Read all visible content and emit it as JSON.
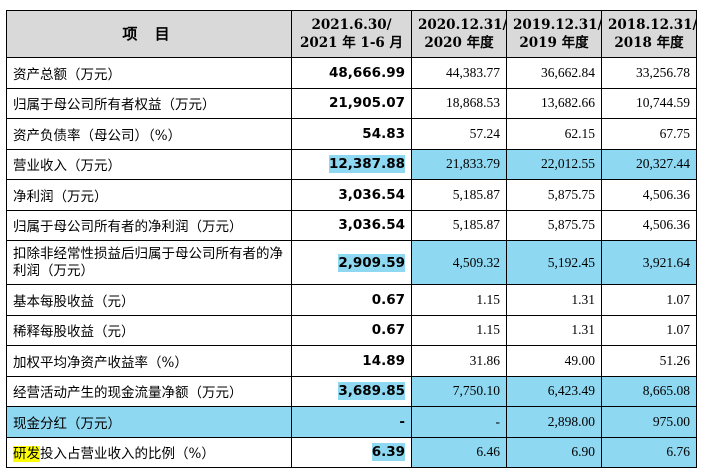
{
  "table": {
    "headers": [
      {
        "line1": "项  目",
        "line2": ""
      },
      {
        "line1": "2021.6.30/",
        "line2": "2021 年 1-6 月"
      },
      {
        "line1": "2020.12.31/",
        "line2": "2020 年度"
      },
      {
        "line1": "2019.12.31/",
        "line2": "2019 年度"
      },
      {
        "line1": "2018.12.31/",
        "line2": "2018 年度"
      }
    ],
    "rows": [
      {
        "label": "资产总额（万元）",
        "values": [
          "48,666.99",
          "44,383.77",
          "36,662.84",
          "33,256.78"
        ]
      },
      {
        "label": "归属于母公司所有者权益（万元）",
        "values": [
          "21,905.07",
          "18,868.53",
          "13,682.66",
          "10,744.59"
        ]
      },
      {
        "label": "资产负债率（母公司）（%）",
        "values": [
          "54.83",
          "57.24",
          "62.15",
          "67.75"
        ]
      },
      {
        "label": "营业收入（万元）",
        "values": [
          "12,387.88",
          "21,833.79",
          "22,012.55",
          "20,327.44"
        ]
      },
      {
        "label": "净利润（万元）",
        "values": [
          "3,036.54",
          "5,185.87",
          "5,875.75",
          "4,506.36"
        ]
      },
      {
        "label": "归属于母公司所有者的净利润（万元）",
        "values": [
          "3,036.54",
          "5,185.87",
          "5,875.75",
          "4,506.36"
        ]
      },
      {
        "label": "扣除非经常性损益后归属于母公司所有者的净利润（万元）",
        "values": [
          "2,909.59",
          "4,509.32",
          "5,192.45",
          "3,921.64"
        ]
      },
      {
        "label": "基本每股收益（元）",
        "values": [
          "0.67",
          "1.15",
          "1.31",
          "1.07"
        ]
      },
      {
        "label": "稀释每股收益（元）",
        "values": [
          "0.67",
          "1.15",
          "1.31",
          "1.07"
        ]
      },
      {
        "label": "加权平均净资产收益率（%）",
        "values": [
          "14.89",
          "31.86",
          "49.00",
          "51.26"
        ]
      },
      {
        "label": "经营活动产生的现金流量净额（万元）",
        "values": [
          "3,689.85",
          "7,750.10",
          "6,423.49",
          "8,665.08"
        ]
      },
      {
        "label": "现金分红（万元）",
        "values": [
          "-",
          "-",
          "2,898.00",
          "975.00"
        ]
      },
      {
        "label_highlight": "研发",
        "label_rest": "投入占营业收入的比例（%）",
        "values": [
          "6.39",
          "6.46",
          "6.90",
          "6.76"
        ]
      }
    ]
  },
  "colors": {
    "highlight_blue": "#8fd8f2",
    "highlight_yellow": "#ffff00",
    "header_bg": "#d9d9d9"
  }
}
